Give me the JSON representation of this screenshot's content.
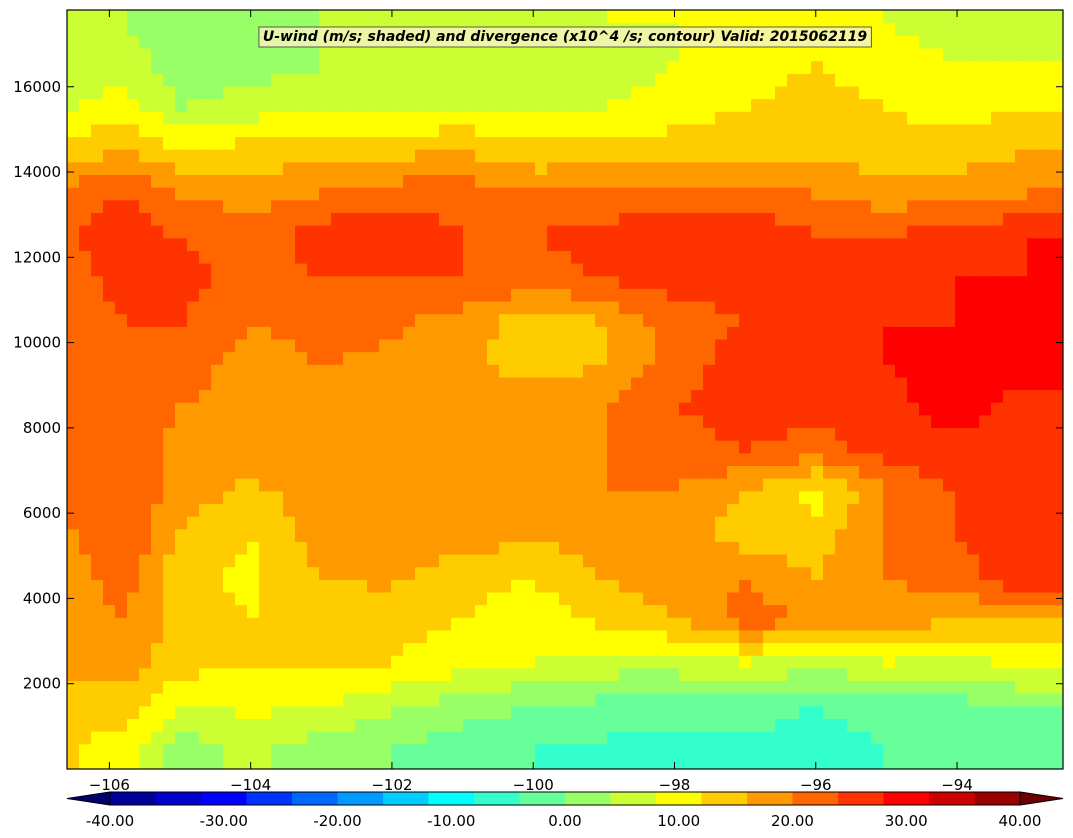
{
  "chart_data": {
    "type": "heatmap",
    "title": "U-wind (m/s; shaded) and divergence (x10^4 /s; contour) Valid: 2015062119",
    "xlabel": "",
    "ylabel": "",
    "xlim": [
      -106.6,
      -92.5
    ],
    "ylim": [
      0,
      17800
    ],
    "x_ticks": [
      -106,
      -104,
      -102,
      -100,
      -98,
      -96,
      -94
    ],
    "x_tick_labels": [
      "−106",
      "−104",
      "−102",
      "−100",
      "−98",
      "−96",
      "−94"
    ],
    "y_ticks": [
      2000,
      4000,
      6000,
      8000,
      10000,
      12000,
      14000,
      16000
    ],
    "y_tick_labels": [
      "2000",
      "4000",
      "6000",
      "8000",
      "10000",
      "12000",
      "14000",
      "16000"
    ],
    "grid": false,
    "colorbar": {
      "orientation": "horizontal",
      "placement": "bottom",
      "extend": "both",
      "range": [
        -40,
        40
      ],
      "step": 4,
      "tick_values": [
        -40,
        -30,
        -20,
        -10,
        0,
        10,
        20,
        30,
        40
      ],
      "tick_labels": [
        "-40.00",
        "-30.00",
        "-20.00",
        "-10.00",
        "0.00",
        "10.00",
        "20.00",
        "30.00",
        "40.00"
      ],
      "colormap": "jet"
    },
    "x": [
      -106.5,
      -105.8,
      -105,
      -104,
      -103,
      -102,
      -101,
      -100,
      -99,
      -98,
      -97,
      -96,
      -95,
      -94,
      -93
    ],
    "y": [
      500,
      1500,
      2500,
      3500,
      4500,
      5500,
      6500,
      7500,
      8500,
      9500,
      10500,
      11500,
      12500,
      13500,
      14500,
      15500,
      16500,
      17500
    ],
    "values": [
      [
        12,
        10,
        2,
        5,
        2,
        0,
        -2,
        -4,
        -5,
        -6,
        -5,
        -6,
        -4,
        -3,
        -2
      ],
      [
        14,
        14,
        8,
        9,
        8,
        5,
        2,
        0,
        -1,
        -2,
        -2,
        -4,
        -2,
        -1,
        0
      ],
      [
        18,
        18,
        14,
        12,
        13,
        12,
        10,
        8,
        6,
        6,
        8,
        6,
        8,
        6,
        10
      ],
      [
        18,
        20,
        14,
        12,
        14,
        13,
        12,
        10,
        13,
        16,
        22,
        20,
        18,
        16,
        16
      ],
      [
        18,
        22,
        13,
        11,
        16,
        17,
        13,
        12,
        16,
        18,
        20,
        16,
        20,
        22,
        28
      ],
      [
        20,
        24,
        16,
        12,
        18,
        20,
        18,
        17,
        18,
        18,
        14,
        14,
        20,
        24,
        26
      ],
      [
        22,
        24,
        18,
        15,
        18,
        20,
        20,
        20,
        20,
        20,
        16,
        10,
        20,
        24,
        24
      ],
      [
        22,
        23,
        18,
        18,
        18,
        20,
        19,
        19,
        20,
        22,
        24,
        22,
        26,
        27,
        26
      ],
      [
        22,
        23,
        20,
        18,
        18,
        19,
        19,
        19,
        20,
        24,
        26,
        26,
        26,
        30,
        26
      ],
      [
        24,
        24,
        22,
        18,
        20,
        19,
        17,
        14,
        16,
        22,
        26,
        26,
        28,
        32,
        30
      ],
      [
        22,
        24,
        24,
        20,
        22,
        21,
        18,
        14,
        16,
        22,
        24,
        26,
        28,
        28,
        30
      ],
      [
        22,
        26,
        26,
        22,
        24,
        24,
        24,
        22,
        24,
        26,
        26,
        24,
        26,
        28,
        28
      ],
      [
        24,
        26,
        24,
        22,
        26,
        28,
        24,
        24,
        26,
        28,
        28,
        24,
        24,
        26,
        28
      ],
      [
        22,
        24,
        20,
        18,
        20,
        22,
        22,
        20,
        20,
        22,
        22,
        20,
        18,
        18,
        20
      ],
      [
        14,
        16,
        12,
        14,
        14,
        15,
        16,
        13,
        14,
        14,
        15,
        14,
        14,
        14,
        16
      ],
      [
        8,
        10,
        4,
        6,
        8,
        8,
        8,
        8,
        8,
        10,
        12,
        14,
        12,
        10,
        12
      ],
      [
        6,
        6,
        2,
        2,
        4,
        6,
        6,
        6,
        6,
        8,
        10,
        12,
        10,
        8,
        8
      ],
      [
        4,
        4,
        2,
        2,
        4,
        6,
        6,
        6,
        8,
        8,
        10,
        8,
        8,
        6,
        6
      ]
    ]
  }
}
